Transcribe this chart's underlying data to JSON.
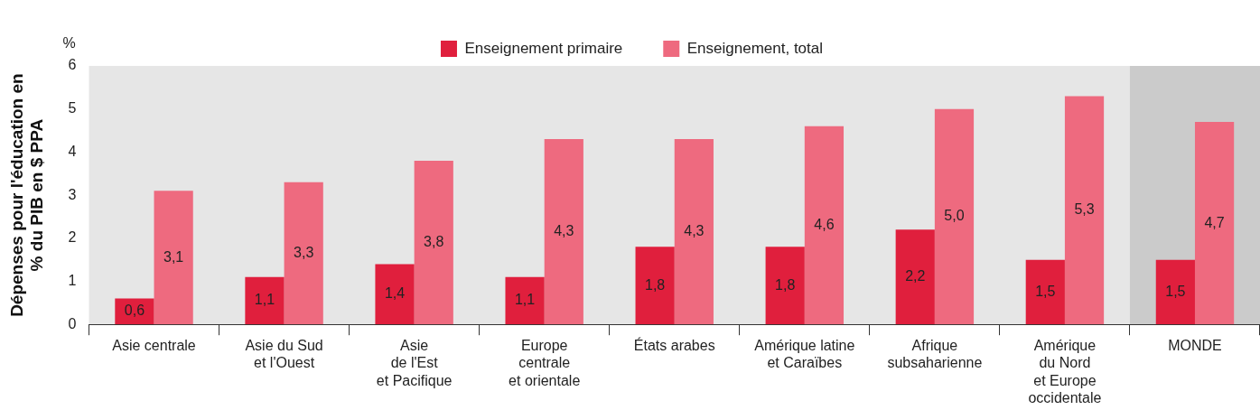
{
  "chart_data": {
    "type": "bar",
    "ylabel": "Dépenses pour l'éducation en\n% du PIB en $ PPA",
    "annotations": [
      "%"
    ],
    "categories": [
      "Asie centrale",
      "Asie du Sud\net l'Ouest",
      "Asie\nde l'Est\net Pacifique",
      "Europe\ncentrale\net orientale",
      "États arabes",
      "Amérique latine\net Caraïbes",
      "Afrique\nsubsaharienne",
      "Amérique\ndu Nord\net Europe\noccidentale",
      "MONDE"
    ],
    "series": [
      {
        "name": "Enseignement primaire",
        "color": "#e01f3d",
        "values": [
          0.6,
          1.1,
          1.4,
          1.1,
          1.8,
          1.8,
          2.2,
          1.5,
          1.5
        ],
        "value_labels": [
          "0,6",
          "1,1",
          "1,4",
          "1,1",
          "1,8",
          "1,8",
          "2,2",
          "1,5",
          "1,5"
        ]
      },
      {
        "name": "Enseignement, total",
        "color": "#ee6a7f",
        "values": [
          3.1,
          3.3,
          3.8,
          4.3,
          4.3,
          4.6,
          5.0,
          5.3,
          4.7
        ],
        "value_labels": [
          "3,1",
          "3,3",
          "3,8",
          "4,3",
          "4,3",
          "4,6",
          "5,0",
          "5,3",
          "4,7"
        ]
      }
    ],
    "ylim": [
      0,
      6
    ],
    "yticks": [
      0,
      1,
      2,
      3,
      4,
      5,
      6
    ],
    "grid": false,
    "legend": "top",
    "bands": [
      {
        "axis": "x",
        "from": "MONDE",
        "to": "MONDE",
        "color": "#cbcbcb"
      }
    ]
  }
}
